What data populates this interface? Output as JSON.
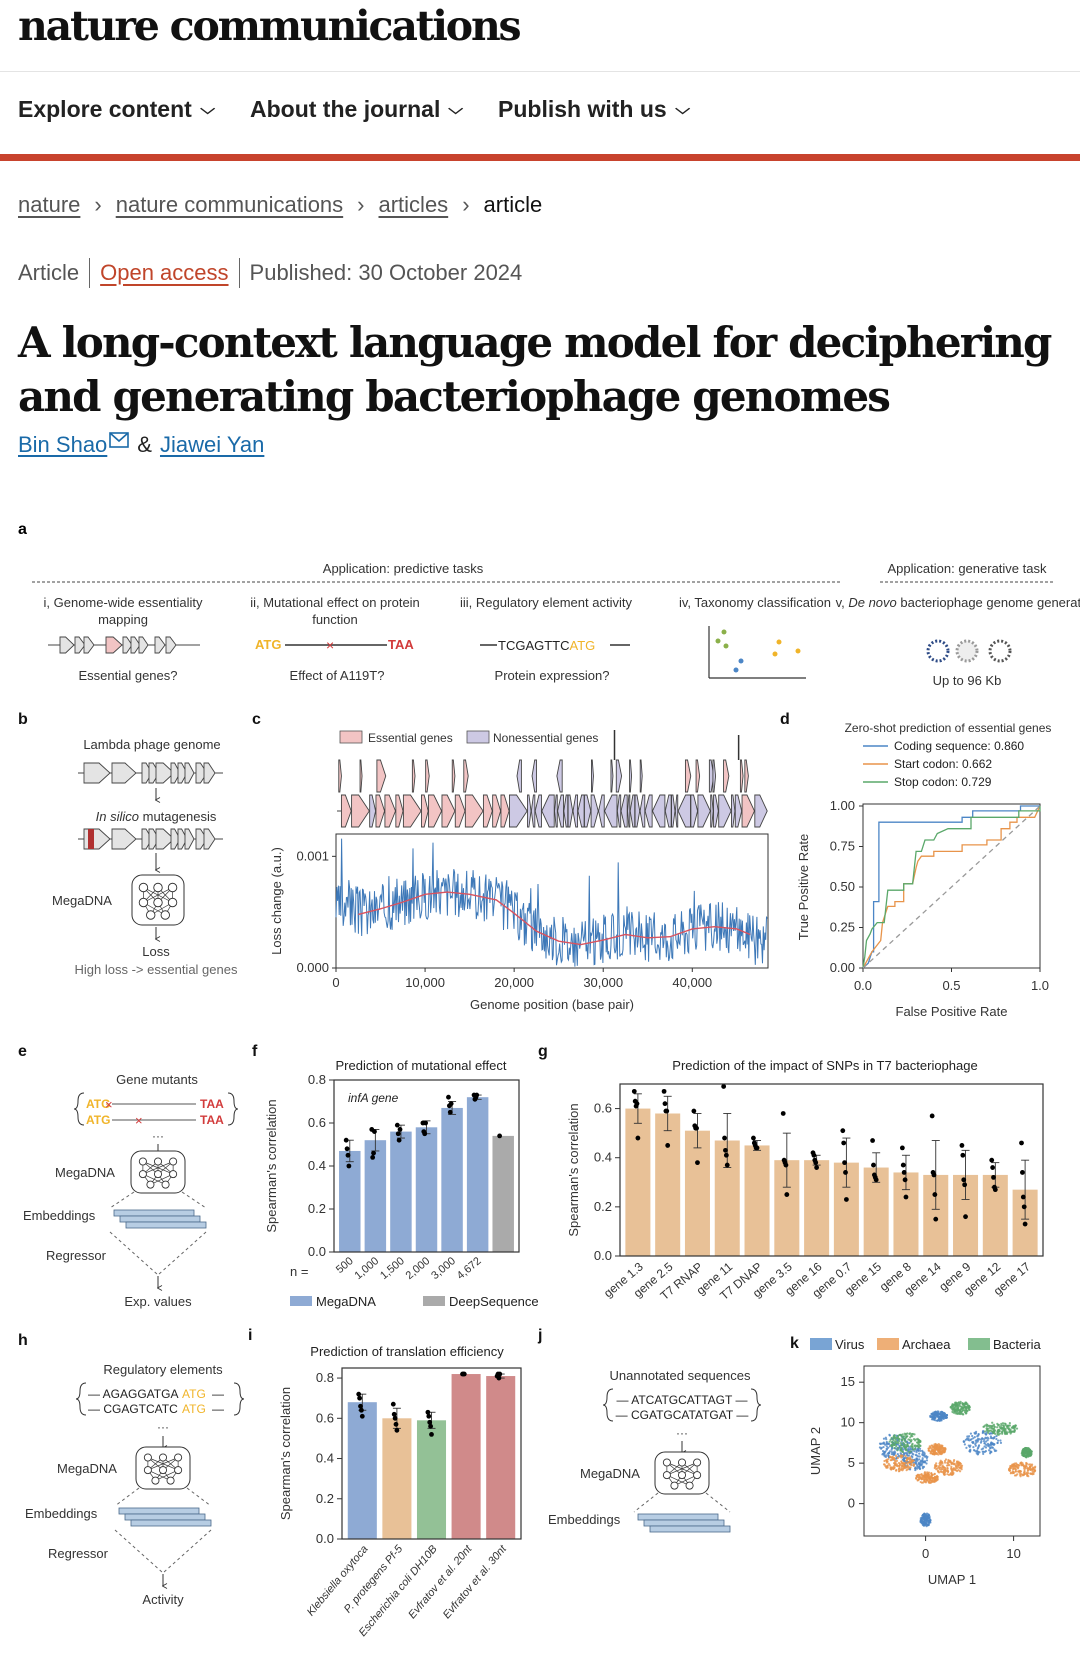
{
  "header": {
    "logo": "nature communications",
    "nav": [
      {
        "label": "Explore content"
      },
      {
        "label": "About the journal"
      },
      {
        "label": "Publish with us"
      }
    ],
    "chevron": "⌄"
  },
  "breadcrumb": [
    {
      "label": "nature",
      "link": true
    },
    {
      "label": "nature communications",
      "link": true
    },
    {
      "label": "articles",
      "link": true
    },
    {
      "label": "article",
      "link": false
    }
  ],
  "breadcrumb_separator": "›",
  "article": {
    "type": "Article",
    "access": "Open access",
    "published": "Published: 30 October 2024",
    "title": "A long-context language model for deciphering and generating bacteriophage genomes",
    "authors": [
      {
        "name": "Bin Shao",
        "email_icon": true
      },
      {
        "name": "Jiawei Yan"
      }
    ],
    "author_separator": "&"
  },
  "colors": {
    "accent_red": "#c8432d",
    "link_blue": "#1a6aa8",
    "open_access": "#c0452a",
    "megadna_blue": "#8eaad4",
    "deepsequence_gray": "#aaaaaa",
    "t7_tan": "#e8c197",
    "essential_pink": "#f2c4c4",
    "nonessential_lavender": "#cdc9e4",
    "atg_yellow": "#f0b429",
    "taa_red": "#d23b3b"
  },
  "figure": {
    "a": {
      "label": "a",
      "predictive_header": "Application: predictive tasks",
      "generative_header": "Application: generative task",
      "tasks": [
        {
          "title": "i, Genome-wide essentiality mapping",
          "question": "Essential genes?"
        },
        {
          "title": "ii, Mutational effect on protein function",
          "question": "Effect of A119T?",
          "seq_start": "ATG",
          "seq_end": "TAA",
          "mark": "×"
        },
        {
          "title": "iii, Regulatory element activity",
          "question": "Protein expression?",
          "seq": "TCGAGTTC",
          "seq_hl": "ATG"
        },
        {
          "title": "iv, Taxonomy classification",
          "question": ""
        },
        {
          "title_pre": "v, ",
          "title_em": "De novo",
          "title_post": " bacteriophage genome generation",
          "question": "Up to 96 Kb"
        }
      ]
    },
    "b": {
      "label": "b",
      "genome": "Lambda phage genome",
      "mut_em": "In silico",
      "mut_rest": " mutagenesis",
      "model": "MegaDNA",
      "loss": "Loss",
      "note": "High loss -> essential genes"
    },
    "e": {
      "label": "e",
      "header": "Gene mutants",
      "start": "ATG",
      "end": "TAA",
      "mark": "×",
      "model": "MegaDNA",
      "embeddings": "Embeddings",
      "regressor": "Regressor",
      "output": "Exp. values",
      "ellipsis": "···"
    },
    "h": {
      "label": "h",
      "header": "Regulatory elements",
      "seqs": [
        {
          "seq": "AGAGGATGA",
          "hl": "ATG"
        },
        {
          "seq": "CGAGTCATC",
          "hl": "ATG"
        }
      ],
      "model": "MegaDNA",
      "embeddings": "Embeddings",
      "regressor": "Regressor",
      "output": "Activity",
      "ellipsis": "···"
    },
    "j": {
      "label": "j",
      "header": "Unannotated sequences",
      "seqs": [
        "ATCATGCATTAGT",
        "CGATGCATATGAT"
      ],
      "model": "MegaDNA",
      "embeddings": "Embeddings",
      "ellipsis": "···"
    }
  },
  "chart_data": [
    {
      "id": "c",
      "label": "c",
      "type": "line",
      "title": "",
      "legend": [
        "Essential genes",
        "Nonessential genes"
      ],
      "xlabel": "Genome position (base pair)",
      "ylabel": "Loss change (a.u.)",
      "xlim": [
        0,
        48500
      ],
      "ylim": [
        0,
        0.0012
      ],
      "xticks": [
        "0",
        "10,000",
        "20,000",
        "30,000",
        "40,000"
      ],
      "xtick_values": [
        0,
        10000,
        20000,
        30000,
        40000
      ],
      "yticks": [
        "0.000",
        "0.001"
      ],
      "ytick_values": [
        0,
        0.001
      ],
      "trend": {
        "x": [
          2500,
          5000,
          7500,
          10000,
          12500,
          15000,
          18000,
          20000,
          22500,
          25000,
          27500,
          30000,
          32500,
          35000,
          37500,
          40000,
          42500,
          45000,
          46500
        ],
        "y": [
          0.00048,
          0.00053,
          0.00059,
          0.00066,
          0.00068,
          0.00066,
          0.00061,
          0.00049,
          0.00033,
          0.00024,
          0.00021,
          0.00025,
          0.0003,
          0.00027,
          0.00028,
          0.00035,
          0.00037,
          0.00035,
          0.0003
        ]
      },
      "series_colors": [
        "#3d78b8",
        "#d9525e"
      ]
    },
    {
      "id": "d",
      "label": "d",
      "type": "line",
      "title": "Zero-shot prediction of essential genes",
      "xlabel": "False Positive Rate",
      "ylabel": "True Positive Rate",
      "xlim": [
        0,
        1
      ],
      "ylim": [
        0,
        1
      ],
      "xticks": [
        "0.0",
        "0.5",
        "1.0"
      ],
      "xtick_values": [
        0,
        0.5,
        1
      ],
      "yticks": [
        "0.00",
        "0.25",
        "0.50",
        "0.75",
        "1.00"
      ],
      "ytick_values": [
        0,
        0.25,
        0.5,
        0.75,
        1
      ],
      "series": [
        {
          "name": "Coding sequence: 0.860",
          "color": "#4c86c6",
          "points": [
            [
              0,
              0
            ],
            [
              0.03,
              0.03
            ],
            [
              0.05,
              0.1
            ],
            [
              0.06,
              0.1
            ],
            [
              0.06,
              0.41
            ],
            [
              0.09,
              0.41
            ],
            [
              0.09,
              0.9
            ],
            [
              0.56,
              0.9
            ],
            [
              0.56,
              0.93
            ],
            [
              0.62,
              0.93
            ],
            [
              0.62,
              0.97
            ],
            [
              0.89,
              0.97
            ],
            [
              0.89,
              1
            ],
            [
              1,
              1
            ]
          ]
        },
        {
          "name": "Start codon: 0.662",
          "color": "#e8944a",
          "points": [
            [
              0,
              0
            ],
            [
              0.05,
              0.1
            ],
            [
              0.1,
              0.17
            ],
            [
              0.11,
              0.28
            ],
            [
              0.14,
              0.38
            ],
            [
              0.18,
              0.38
            ],
            [
              0.18,
              0.41
            ],
            [
              0.23,
              0.41
            ],
            [
              0.23,
              0.52
            ],
            [
              0.28,
              0.52
            ],
            [
              0.3,
              0.62
            ],
            [
              0.31,
              0.66
            ],
            [
              0.33,
              0.69
            ],
            [
              0.4,
              0.69
            ],
            [
              0.4,
              0.72
            ],
            [
              0.56,
              0.72
            ],
            [
              0.56,
              0.76
            ],
            [
              0.7,
              0.76
            ],
            [
              0.7,
              0.79
            ],
            [
              0.78,
              0.79
            ],
            [
              0.78,
              0.86
            ],
            [
              0.83,
              0.86
            ],
            [
              0.83,
              0.9
            ],
            [
              0.87,
              0.9
            ],
            [
              0.87,
              0.93
            ],
            [
              0.97,
              0.93
            ],
            [
              1,
              1
            ]
          ]
        },
        {
          "name": "Stop codon: 0.729",
          "color": "#5aa86a",
          "points": [
            [
              0,
              0
            ],
            [
              0.01,
              0.07
            ],
            [
              0.02,
              0.17
            ],
            [
              0.04,
              0.21
            ],
            [
              0.05,
              0.24
            ],
            [
              0.08,
              0.28
            ],
            [
              0.12,
              0.28
            ],
            [
              0.14,
              0.48
            ],
            [
              0.23,
              0.48
            ],
            [
              0.23,
              0.52
            ],
            [
              0.28,
              0.52
            ],
            [
              0.3,
              0.72
            ],
            [
              0.33,
              0.72
            ],
            [
              0.35,
              0.79
            ],
            [
              0.4,
              0.79
            ],
            [
              0.42,
              0.83
            ],
            [
              0.48,
              0.86
            ],
            [
              0.61,
              0.86
            ],
            [
              0.61,
              0.93
            ],
            [
              0.88,
              0.93
            ],
            [
              0.88,
              0.97
            ],
            [
              1,
              0.97
            ],
            [
              1,
              1
            ]
          ]
        },
        {
          "name": "chance",
          "color": "#999999",
          "dashed": true,
          "points": [
            [
              0,
              0
            ],
            [
              1,
              1
            ]
          ]
        }
      ]
    },
    {
      "id": "f",
      "label": "f",
      "type": "bar",
      "title": "Prediction of mutational effect",
      "annotation": "infA gene",
      "xlabel": "",
      "ylabel": "Spearman's correlation",
      "ylim": [
        0,
        0.8
      ],
      "yticks": [
        "0.0",
        "0.2",
        "0.4",
        "0.6",
        "0.8"
      ],
      "ytick_values": [
        0,
        0.2,
        0.4,
        0.6,
        0.8
      ],
      "n_prefix": "n =",
      "categories": [
        "500",
        "1,000",
        "1,500",
        "2,000",
        "3,000",
        "4,672",
        ""
      ],
      "values": [
        0.47,
        0.52,
        0.56,
        0.58,
        0.67,
        0.72,
        0.54
      ],
      "errors": [
        0.05,
        0.05,
        0.03,
        0.03,
        0.03,
        0.01,
        0.0
      ],
      "points": [
        [
          0.52,
          0.48,
          0.45,
          0.4
        ],
        [
          0.57,
          0.44,
          0.46,
          0.56
        ],
        [
          0.59,
          0.55,
          0.52,
          0.57
        ],
        [
          0.6,
          0.56,
          0.55,
          0.6
        ],
        [
          0.72,
          0.68,
          0.65,
          0.69
        ],
        [
          0.73,
          0.71,
          0.72,
          0.73
        ],
        [
          0.54
        ]
      ],
      "bar_colors": [
        "#8eaad4",
        "#8eaad4",
        "#8eaad4",
        "#8eaad4",
        "#8eaad4",
        "#8eaad4",
        "#aaaaaa"
      ],
      "legend": [
        {
          "name": "MegaDNA",
          "color": "#8eaad4"
        },
        {
          "name": "DeepSequence",
          "color": "#aaaaaa"
        }
      ]
    },
    {
      "id": "g",
      "label": "g",
      "type": "bar",
      "title": "Prediction of the impact of SNPs in T7 bacteriophage",
      "xlabel": "",
      "ylabel": "Spearman's correlation",
      "ylim": [
        0,
        0.7
      ],
      "yticks": [
        "0.0",
        "0.2",
        "0.4",
        "0.6"
      ],
      "ytick_values": [
        0,
        0.2,
        0.4,
        0.6
      ],
      "categories": [
        "gene 1.3",
        "gene 2.5",
        "T7 RNAP",
        "gene 11",
        "T7 DNAP",
        "gene 3.5",
        "gene 16",
        "gene 0.7",
        "gene 15",
        "gene 8",
        "gene 14",
        "gene 9",
        "gene 12",
        "gene 17"
      ],
      "values": [
        0.6,
        0.58,
        0.51,
        0.47,
        0.45,
        0.39,
        0.39,
        0.38,
        0.36,
        0.34,
        0.33,
        0.33,
        0.33,
        0.27
      ],
      "errors": [
        0.06,
        0.07,
        0.07,
        0.11,
        0.02,
        0.11,
        0.02,
        0.1,
        0.06,
        0.07,
        0.14,
        0.1,
        0.05,
        0.12
      ],
      "points": [
        [
          0.67,
          0.63,
          0.61,
          0.62,
          0.48
        ],
        [
          0.67,
          0.62,
          0.59,
          0.59,
          0.45
        ],
        [
          0.59,
          0.53,
          0.52,
          0.52,
          0.38
        ],
        [
          0.69,
          0.48,
          0.43,
          0.41,
          0.37
        ],
        [
          0.48,
          0.46,
          0.45,
          0.44,
          0.44
        ],
        [
          0.58,
          0.39,
          0.38,
          0.37,
          0.25
        ],
        [
          0.42,
          0.41,
          0.39,
          0.38,
          0.36
        ],
        [
          0.51,
          0.46,
          0.38,
          0.34,
          0.23
        ],
        [
          0.47,
          0.37,
          0.33,
          0.32,
          0.31
        ],
        [
          0.44,
          0.37,
          0.34,
          0.31,
          0.24
        ],
        [
          0.57,
          0.34,
          0.33,
          0.25,
          0.15
        ],
        [
          0.45,
          0.41,
          0.31,
          0.29,
          0.16
        ],
        [
          0.39,
          0.36,
          0.32,
          0.28,
          0.27
        ],
        [
          0.46,
          0.34,
          0.24,
          0.2,
          0.13
        ]
      ],
      "bar_color": "#e8c197"
    },
    {
      "id": "i",
      "label": "i",
      "type": "bar",
      "title": "Prediction of translation efficiency",
      "xlabel": "",
      "ylabel": "Spearman's correlation",
      "ylim": [
        0,
        0.85
      ],
      "yticks": [
        "0.0",
        "0.2",
        "0.4",
        "0.6",
        "0.8"
      ],
      "ytick_values": [
        0,
        0.2,
        0.4,
        0.6,
        0.8
      ],
      "categories": [
        "Klebsiella oxytoca",
        "P. protegens Pf-5",
        "Escherichia coli DH10B",
        "Evfratov et al. 20nt",
        "Evfratov et al. 30nt"
      ],
      "values": [
        0.68,
        0.6,
        0.59,
        0.82,
        0.81
      ],
      "errors": [
        0.04,
        0.05,
        0.04,
        0.0,
        0.01
      ],
      "points": [
        [
          0.72,
          0.7,
          0.66,
          0.64,
          0.61
        ],
        [
          0.67,
          0.62,
          0.6,
          0.57,
          0.54
        ],
        [
          0.63,
          0.61,
          0.58,
          0.56,
          0.52
        ],
        [
          0.82,
          0.82,
          0.82
        ],
        [
          0.81,
          0.82,
          0.8,
          0.82
        ]
      ],
      "bar_colors": [
        "#8eaad4",
        "#e8c197",
        "#93c196",
        "#d08a8a",
        "#d08a8a"
      ]
    },
    {
      "id": "k",
      "label": "k",
      "type": "scatter",
      "title": "",
      "xlabel": "UMAP 1",
      "ylabel": "UMAP 2",
      "xlim": [
        -7,
        13
      ],
      "ylim": [
        -4,
        17
      ],
      "xticks": [
        "0",
        "10"
      ],
      "xtick_values": [
        0,
        10
      ],
      "yticks": [
        "0",
        "5",
        "10",
        "15"
      ],
      "ytick_values": [
        0,
        5,
        10,
        15
      ],
      "legend": [
        {
          "name": "Virus",
          "color": "#4c86c6"
        },
        {
          "name": "Archaea",
          "color": "#e8944a"
        },
        {
          "name": "Bacteria",
          "color": "#5aa86a"
        }
      ],
      "clusters": [
        {
          "class": "Virus",
          "cx": -3.5,
          "cy": 7,
          "rx": 1.8,
          "ry": 1.6
        },
        {
          "class": "Virus",
          "cx": -1.2,
          "cy": 5.5,
          "rx": 1.5,
          "ry": 1.4
        },
        {
          "class": "Virus",
          "cx": 1.5,
          "cy": 10.8,
          "rx": 1.0,
          "ry": 0.6
        },
        {
          "class": "Virus",
          "cx": 6.5,
          "cy": 7.5,
          "rx": 2.2,
          "ry": 1.5
        },
        {
          "class": "Virus",
          "cx": 0,
          "cy": -2.0,
          "rx": 0.6,
          "ry": 0.8
        },
        {
          "class": "Archaea",
          "cx": -3.0,
          "cy": 5,
          "rx": 1.8,
          "ry": 1.0
        },
        {
          "class": "Archaea",
          "cx": 0.2,
          "cy": 3.2,
          "rx": 1.3,
          "ry": 0.7
        },
        {
          "class": "Archaea",
          "cx": 2.6,
          "cy": 4.5,
          "rx": 1.6,
          "ry": 1.0
        },
        {
          "class": "Archaea",
          "cx": 1.3,
          "cy": 6.7,
          "rx": 1.0,
          "ry": 0.7
        },
        {
          "class": "Archaea",
          "cx": 11,
          "cy": 4.2,
          "rx": 1.6,
          "ry": 0.9
        },
        {
          "class": "Bacteria",
          "cx": -2.3,
          "cy": 7.5,
          "rx": 1.8,
          "ry": 1.3
        },
        {
          "class": "Bacteria",
          "cx": 4.0,
          "cy": 11.8,
          "rx": 1.2,
          "ry": 0.8
        },
        {
          "class": "Bacteria",
          "cx": 8.5,
          "cy": 9.3,
          "rx": 2.0,
          "ry": 0.8
        },
        {
          "class": "Bacteria",
          "cx": 11.5,
          "cy": 6.3,
          "rx": 0.6,
          "ry": 0.6
        }
      ]
    }
  ]
}
